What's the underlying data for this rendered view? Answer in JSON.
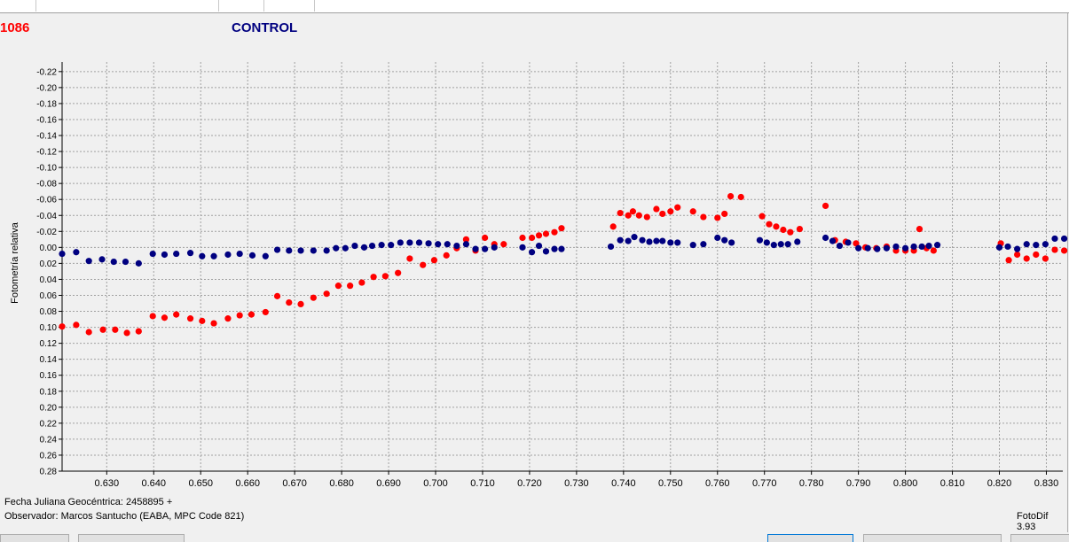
{
  "header": {
    "object_label": "1086",
    "control_label": "CONTROL"
  },
  "footer": {
    "julian_date": "Fecha Juliana Geocéntrica: 2458895 +",
    "observer": "Observador: Marcos Santucho (EABA, MPC Code 821)",
    "version": "FotoDif 3.93"
  },
  "colors": {
    "object": "#ff0000",
    "control": "#000080",
    "grid": "#a0a0a0"
  },
  "chart_data": {
    "type": "scatter",
    "title": "",
    "xlabel": "",
    "ylabel": "Fotometría relativa",
    "xlim": [
      0.6205,
      0.8335
    ],
    "ylim": [
      -0.232,
      0.28
    ],
    "y_inverted": true,
    "grid": true,
    "x_ticks": [
      "0.630",
      "0.640",
      "0.650",
      "0.660",
      "0.670",
      "0.680",
      "0.690",
      "0.700",
      "0.710",
      "0.720",
      "0.730",
      "0.740",
      "0.750",
      "0.760",
      "0.770",
      "0.780",
      "0.790",
      "0.800",
      "0.810",
      "0.820",
      "0.830"
    ],
    "y_ticks": [
      "-0.22",
      "-0.20",
      "-0.18",
      "-0.16",
      "-0.14",
      "-0.12",
      "-0.10",
      "-0.08",
      "-0.06",
      "-0.04",
      "-0.02",
      "0.00",
      "0.02",
      "0.04",
      "0.06",
      "0.08",
      "0.10",
      "0.12",
      "0.14",
      "0.16",
      "0.18",
      "0.20",
      "0.22",
      "0.24",
      "0.26",
      "0.28"
    ],
    "series": [
      {
        "color": "#ff0000",
        "x": [
          0.6205,
          0.6235,
          0.6262,
          0.6292,
          0.6318,
          0.6343,
          0.6368,
          0.6398,
          0.6423,
          0.6448,
          0.6478,
          0.6503,
          0.6528,
          0.6558,
          0.6583,
          0.6608,
          0.6638,
          0.6663,
          0.6688,
          0.6713,
          0.674,
          0.6768,
          0.6793,
          0.6818,
          0.6843,
          0.6868,
          0.6893,
          0.692,
          0.6945,
          0.6973,
          0.6997,
          0.7023,
          0.7045,
          0.7065,
          0.7085,
          0.7105,
          0.7125,
          0.7145,
          0.7185,
          0.7205,
          0.722,
          0.7235,
          0.7253,
          0.7268,
          0.7378,
          0.7393,
          0.741,
          0.742,
          0.7433,
          0.745,
          0.747,
          0.7483,
          0.75,
          0.7515,
          0.7548,
          0.757,
          0.76,
          0.7615,
          0.7628,
          0.765,
          0.7695,
          0.771,
          0.7725,
          0.774,
          0.7755,
          0.7775,
          0.783,
          0.785,
          0.7873,
          0.7895,
          0.7915,
          0.7938,
          0.796,
          0.798,
          0.8,
          0.8018,
          0.803,
          0.8045,
          0.806,
          0.8203,
          0.822,
          0.8238,
          0.8258,
          0.8278,
          0.8298,
          0.8318,
          0.8338
        ],
        "y": [
          0.099,
          0.097,
          0.106,
          0.103,
          0.103,
          0.107,
          0.105,
          0.086,
          0.088,
          0.084,
          0.089,
          0.092,
          0.095,
          0.089,
          0.085,
          0.084,
          0.081,
          0.061,
          0.069,
          0.071,
          0.063,
          0.058,
          0.048,
          0.048,
          0.044,
          0.037,
          0.036,
          0.032,
          0.014,
          0.022,
          0.016,
          0.01,
          0.001,
          -0.01,
          0.004,
          -0.012,
          -0.004,
          -0.004,
          -0.012,
          -0.012,
          -0.015,
          -0.017,
          -0.019,
          -0.024,
          -0.026,
          -0.043,
          -0.04,
          -0.045,
          -0.04,
          -0.038,
          -0.048,
          -0.042,
          -0.045,
          -0.05,
          -0.045,
          -0.038,
          -0.037,
          -0.042,
          -0.064,
          -0.063,
          -0.039,
          -0.029,
          -0.026,
          -0.022,
          -0.019,
          -0.023,
          -0.052,
          -0.009,
          -0.007,
          -0.005,
          0.0,
          0.001,
          -0.001,
          0.004,
          0.004,
          0.004,
          -0.023,
          0.001,
          0.004,
          -0.005,
          0.016,
          0.009,
          0.014,
          0.009,
          0.014,
          0.003,
          0.004
        ]
      },
      {
        "color": "#000080",
        "x": [
          0.6205,
          0.6235,
          0.6262,
          0.629,
          0.6315,
          0.634,
          0.6368,
          0.6398,
          0.6423,
          0.6448,
          0.6478,
          0.6503,
          0.6528,
          0.6558,
          0.6583,
          0.661,
          0.6638,
          0.6663,
          0.6688,
          0.6713,
          0.674,
          0.6768,
          0.6788,
          0.6808,
          0.6828,
          0.6848,
          0.6865,
          0.6885,
          0.6905,
          0.6925,
          0.6945,
          0.6965,
          0.6985,
          0.7005,
          0.7025,
          0.7045,
          0.7065,
          0.7085,
          0.7105,
          0.7125,
          0.7185,
          0.7205,
          0.722,
          0.7235,
          0.7253,
          0.7268,
          0.7373,
          0.7393,
          0.741,
          0.7423,
          0.744,
          0.7455,
          0.747,
          0.7483,
          0.75,
          0.7515,
          0.7548,
          0.757,
          0.76,
          0.7615,
          0.763,
          0.769,
          0.7705,
          0.772,
          0.7735,
          0.775,
          0.777,
          0.783,
          0.7845,
          0.786,
          0.7878,
          0.79,
          0.792,
          0.794,
          0.796,
          0.798,
          0.8,
          0.8018,
          0.8035,
          0.805,
          0.8068,
          0.82,
          0.8218,
          0.8238,
          0.8258,
          0.8278,
          0.8298,
          0.8318,
          0.8338
        ],
        "y": [
          0.008,
          0.006,
          0.017,
          0.015,
          0.018,
          0.018,
          0.02,
          0.008,
          0.009,
          0.008,
          0.007,
          0.011,
          0.011,
          0.009,
          0.008,
          0.01,
          0.011,
          0.003,
          0.004,
          0.004,
          0.004,
          0.004,
          0.001,
          0.001,
          -0.002,
          0.0,
          -0.002,
          -0.003,
          -0.003,
          -0.006,
          -0.006,
          -0.006,
          -0.005,
          -0.004,
          -0.004,
          -0.002,
          -0.004,
          0.002,
          0.002,
          0.0,
          0.0,
          0.006,
          -0.002,
          0.005,
          0.002,
          0.002,
          -0.001,
          -0.009,
          -0.008,
          -0.013,
          -0.009,
          -0.007,
          -0.008,
          -0.008,
          -0.006,
          -0.006,
          -0.003,
          -0.004,
          -0.012,
          -0.009,
          -0.006,
          -0.009,
          -0.006,
          -0.003,
          -0.004,
          -0.004,
          -0.007,
          -0.012,
          -0.008,
          -0.002,
          -0.006,
          0.001,
          0.001,
          0.002,
          0.001,
          -0.001,
          0.001,
          -0.001,
          -0.001,
          -0.002,
          -0.003,
          0.0,
          -0.001,
          0.002,
          -0.004,
          -0.003,
          -0.004,
          -0.011,
          -0.011
        ]
      }
    ]
  }
}
